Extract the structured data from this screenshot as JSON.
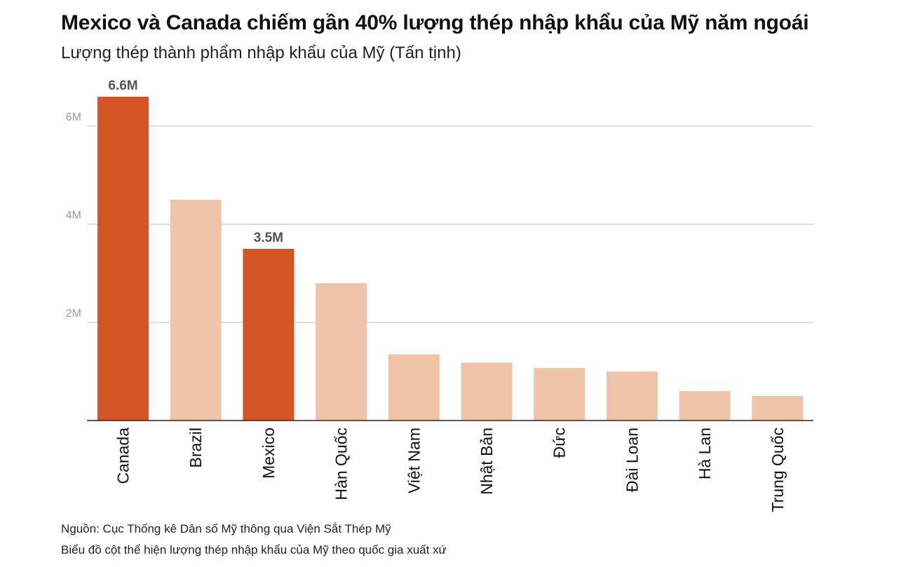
{
  "header": {
    "title": "Mexico và Canada chiếm gần 40% lượng thép nhập khẩu của Mỹ năm ngoái",
    "subtitle": "Lượng thép thành phẩm nhập khẩu của Mỹ (Tấn tịnh)"
  },
  "footer": {
    "source": "Nguồn: Cục Thống kê Dân số Mỹ thông qua Viện Sắt Thép Mỹ",
    "note": "Biểu đồ cột thể hiện lượng thép nhập khẩu của Mỹ theo quốc gia xuất xứ"
  },
  "colors": {
    "highlight": "#d65527",
    "muted": "#f0c4a8",
    "grid": "#cccccc",
    "axis": "#222222",
    "tick_label": "#9a9a9a",
    "data_label": "#555555"
  },
  "chart_data": {
    "type": "bar",
    "title": "Mexico và Canada chiếm gần 40% lượng thép nhập khẩu của Mỹ năm ngoái",
    "subtitle": "Lượng thép thành phẩm nhập khẩu của Mỹ (Tấn tịnh)",
    "xlabel": "",
    "ylabel": "",
    "categories": [
      "Canada",
      "Brazil",
      "Mexico",
      "Hàn Quốc",
      "Việt Nam",
      "Nhật Bản",
      "Đức",
      "Đài Loan",
      "Hà Lan",
      "Trung Quốc"
    ],
    "values": [
      6.6,
      4.5,
      3.5,
      2.8,
      1.35,
      1.18,
      1.07,
      1.0,
      0.6,
      0.5
    ],
    "unit": "M",
    "highlighted": [
      true,
      false,
      true,
      false,
      false,
      false,
      false,
      false,
      false,
      false
    ],
    "data_labels": [
      "6.6M",
      "",
      "3.5M",
      "",
      "",
      "",
      "",
      "",
      "",
      ""
    ],
    "yticks": [
      {
        "value": 2,
        "label": "2M"
      },
      {
        "value": 4,
        "label": "4M"
      },
      {
        "value": 6,
        "label": "6M"
      }
    ],
    "ylim": [
      0,
      6.6
    ],
    "grid": true,
    "legend": "none"
  }
}
